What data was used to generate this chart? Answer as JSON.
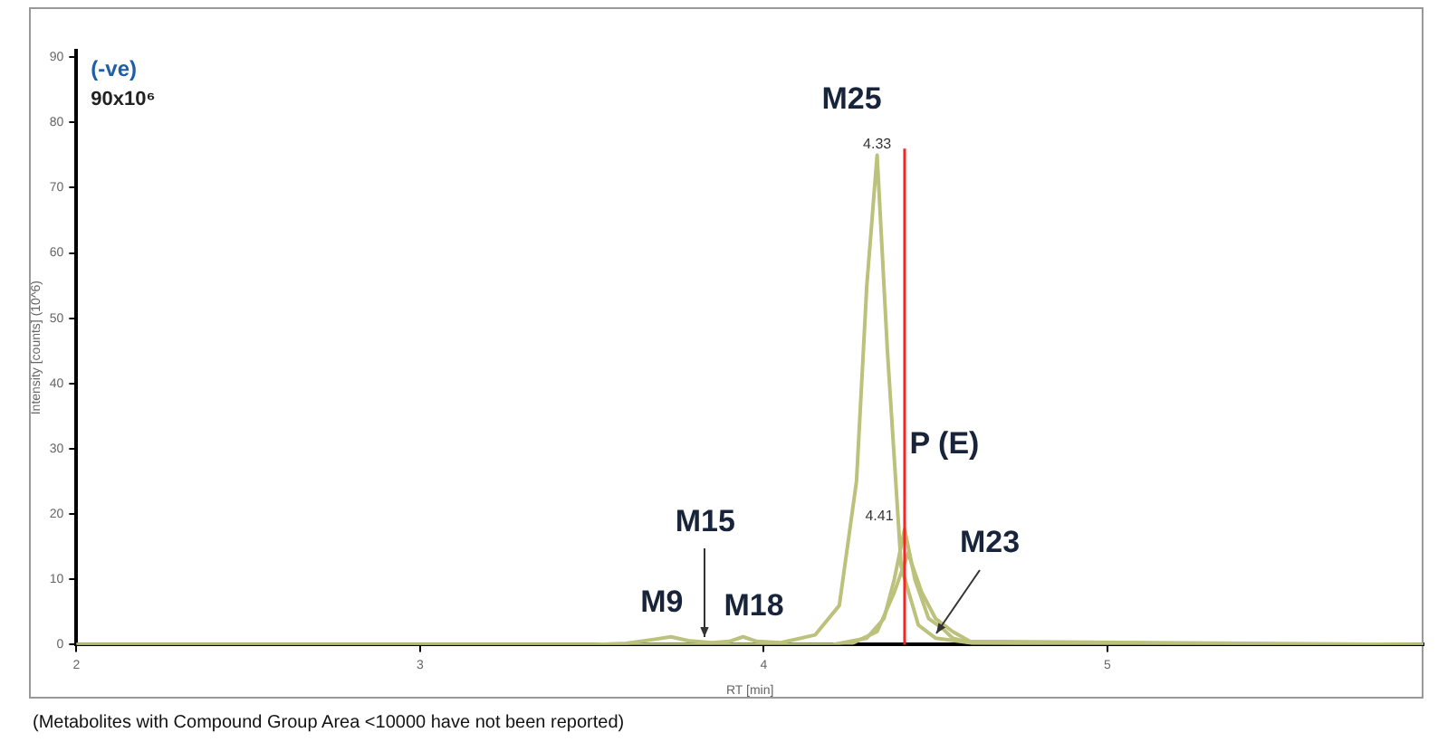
{
  "chart_data": {
    "type": "line",
    "xlabel": "RT [min]",
    "ylabel": "Intensity [counts] (10^6)",
    "xlim": [
      2,
      5.92
    ],
    "xticks": [
      2,
      3,
      4,
      5
    ],
    "ylim": [
      0,
      91
    ],
    "yticks": [
      0,
      10,
      20,
      30,
      40,
      50,
      60,
      70,
      80,
      90
    ],
    "grid": false,
    "legend": false,
    "marker": "none",
    "line_style": "solid",
    "series": [
      {
        "color": "#bcc17c",
        "x": [
          2,
          3.5,
          3.6,
          3.68,
          3.73,
          3.78,
          3.85,
          3.9,
          3.94,
          3.98,
          4.05,
          4.15,
          4.22,
          4.27,
          4.3,
          4.33,
          4.36,
          4.4,
          4.45,
          4.5,
          4.6,
          5,
          5.92
        ],
        "values": [
          0,
          0,
          0.2,
          0.8,
          1.2,
          0.6,
          0.3,
          0.5,
          1.2,
          0.5,
          0.3,
          1.5,
          6,
          25,
          55,
          75,
          45,
          12,
          3,
          1,
          0.3,
          0,
          0
        ]
      },
      {
        "color": "#bcc17c",
        "x": [
          2,
          4.2,
          4.3,
          4.35,
          4.38,
          4.41,
          4.44,
          4.48,
          4.52,
          4.55,
          4.62,
          5.92
        ],
        "values": [
          0,
          0,
          1,
          4,
          10,
          17.7,
          10,
          4,
          2.5,
          1,
          0,
          0
        ]
      },
      {
        "color": "#bcc17c",
        "x": [
          2,
          4.25,
          4.33,
          4.38,
          4.42,
          4.46,
          4.5,
          4.55,
          4.6,
          5.92
        ],
        "values": [
          0,
          0,
          2,
          8,
          14,
          8,
          4,
          2,
          0.5,
          0
        ]
      }
    ],
    "ref_lines": [
      {
        "axis": "x",
        "value": 4.41,
        "color": "#ff2020"
      }
    ],
    "annotations": [
      "(-ve)",
      "90x10⁶",
      {
        "text": "M25",
        "x": 4.33,
        "y": 75
      },
      {
        "text": "4.33",
        "x": 4.33,
        "y": 75
      },
      {
        "text": "P (E)",
        "x": 4.41,
        "y": 17.7
      },
      {
        "text": "4.41",
        "x": 4.41,
        "y": 17.7
      },
      {
        "text": "M15",
        "x": 3.83,
        "y": 0.3
      },
      {
        "text": "M9",
        "x": 3.73,
        "y": 1.2
      },
      {
        "text": "M18",
        "x": 3.94,
        "y": 1.2
      },
      {
        "text": "M23",
        "x": 4.5,
        "y": 1
      },
      "(Metabolites with Compound Group Area <10000 have not been reported)"
    ]
  }
}
